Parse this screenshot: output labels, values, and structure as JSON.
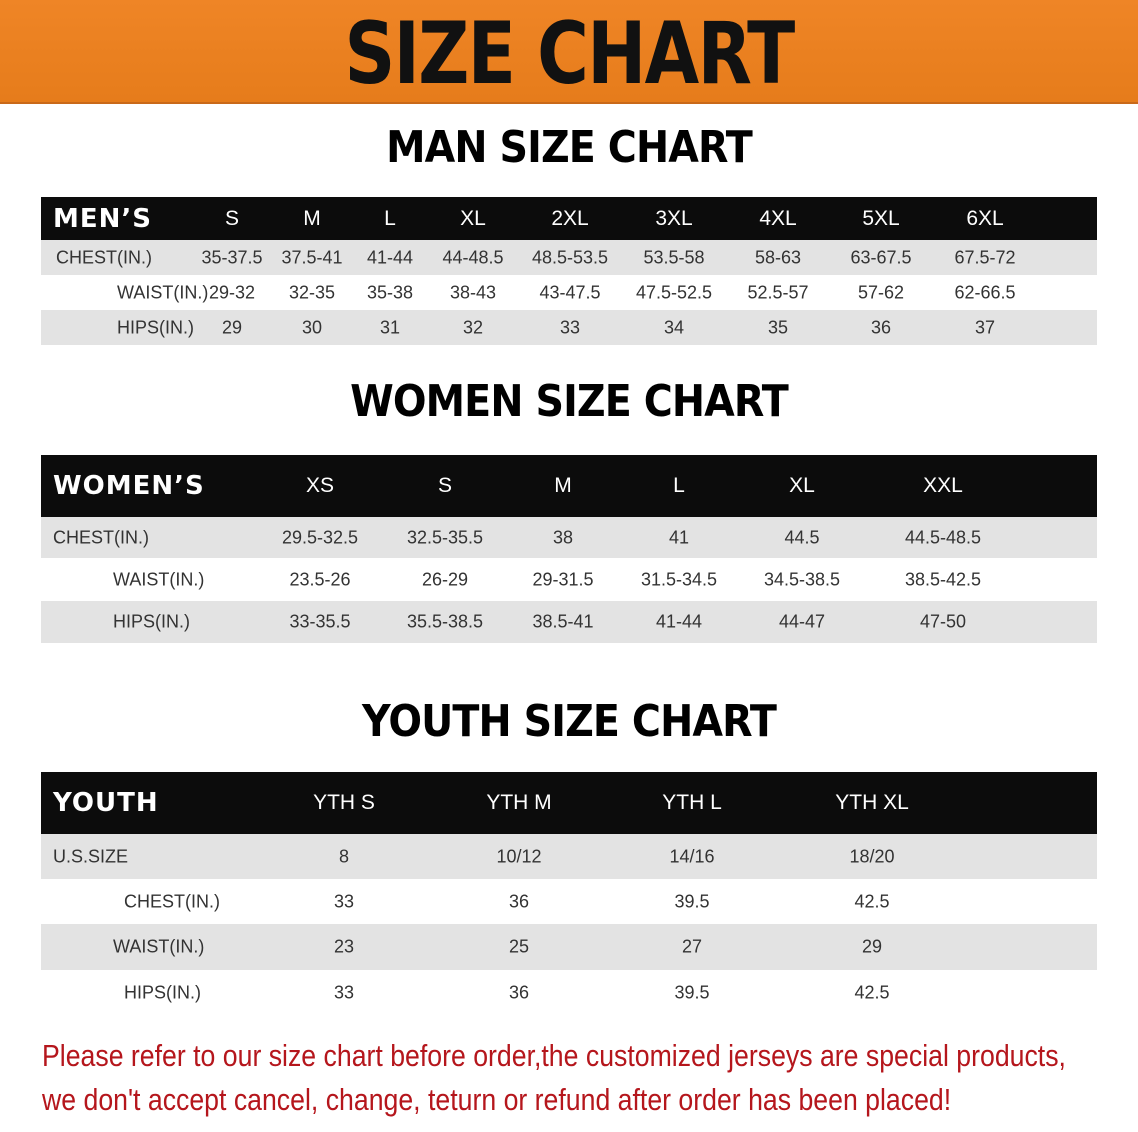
{
  "banner_title": "SIZE CHART",
  "men": {
    "title": "MAN SIZE CHART",
    "header": [
      "MEN’S",
      "S",
      "M",
      "L",
      "XL",
      "2XL",
      "3XL",
      "4XL",
      "5XL",
      "6XL"
    ],
    "rows": [
      [
        "CHEST(IN.)",
        "35-37.5",
        "37.5-41",
        "41-44",
        "44-48.5",
        "48.5-53.5",
        "53.5-58",
        "58-63",
        "63-67.5",
        "67.5-72"
      ],
      [
        "WAIST(IN.)",
        "29-32",
        "32-35",
        "35-38",
        "38-43",
        "43-47.5",
        "47.5-52.5",
        "52.5-57",
        "57-62",
        "62-66.5"
      ],
      [
        "HIPS(IN.)",
        "29",
        "30",
        "31",
        "32",
        "33",
        "34",
        "35",
        "36",
        "37"
      ]
    ]
  },
  "women": {
    "title": "WOMEN SIZE CHART",
    "header": [
      "WOMEN’S",
      "XS",
      "S",
      "M",
      "L",
      "XL",
      "XXL"
    ],
    "rows": [
      [
        "CHEST(IN.)",
        "29.5-32.5",
        "32.5-35.5",
        "38",
        "41",
        "44.5",
        "44.5-48.5"
      ],
      [
        "WAIST(IN.)",
        "23.5-26",
        "26-29",
        "29-31.5",
        "31.5-34.5",
        "34.5-38.5",
        "38.5-42.5"
      ],
      [
        "HIPS(IN.)",
        "33-35.5",
        "35.5-38.5",
        "38.5-41",
        "41-44",
        "44-47",
        "47-50"
      ]
    ]
  },
  "youth": {
    "title": "YOUTH SIZE CHART",
    "header": [
      "YOUTH",
      "YTH S",
      "YTH M",
      "YTH L",
      "YTH XL"
    ],
    "rows": [
      [
        "U.S.SIZE",
        "8",
        "10/12",
        "14/16",
        "18/20"
      ],
      [
        "CHEST(IN.)",
        "33",
        "36",
        "39.5",
        "42.5"
      ],
      [
        "WAIST(IN.)",
        "23",
        "25",
        "27",
        "29"
      ],
      [
        "HIPS(IN.)",
        "33",
        "36",
        "39.5",
        "42.5"
      ]
    ]
  },
  "notice": [
    "Please refer to our size chart before order,the customized jerseys are special products,",
    "we don't accept cancel, change, teturn or refund after order has been placed!"
  ],
  "colors": {
    "banner": "#e67c1b",
    "header_row": "#0c0c0c",
    "stripe": "#e3e3e3",
    "notice": "#b5161c"
  }
}
